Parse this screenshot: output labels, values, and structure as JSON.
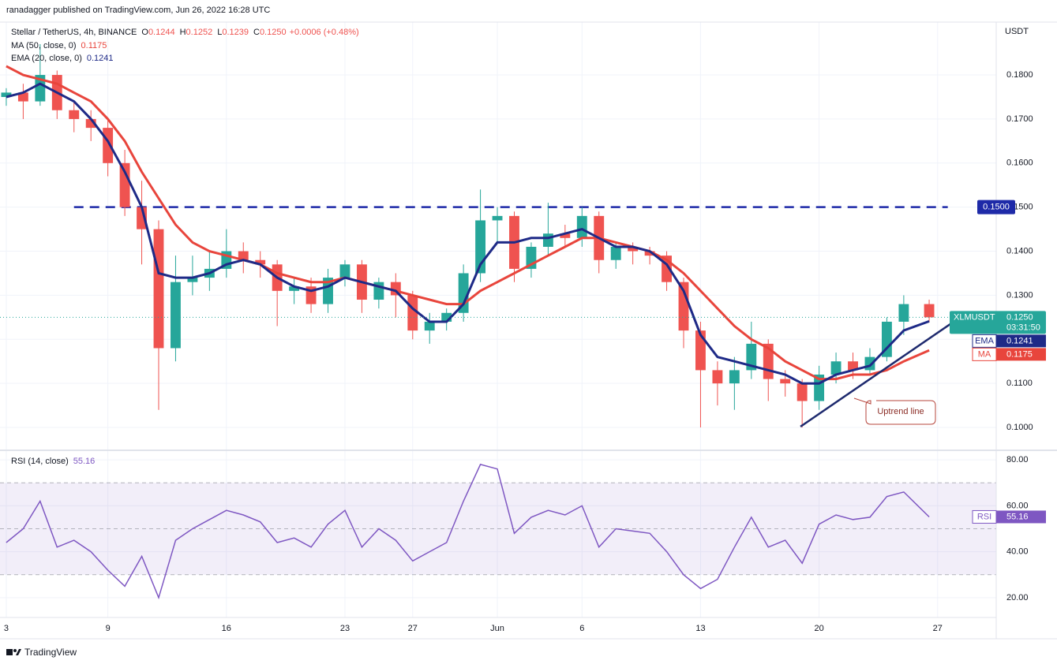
{
  "header": "ranadagger published on TradingView.com, Jun 26, 2022 16:28 UTC",
  "footer": "TradingView",
  "chart_data": {
    "type": "candlestick",
    "currency": "USDT",
    "legend": {
      "symbol": "Stellar / TetherUS, 4h, BINANCE",
      "ohlc": [
        [
          "O",
          "0.1244"
        ],
        [
          "H",
          "0.1252"
        ],
        [
          "L",
          "0.1239"
        ],
        [
          "C",
          "0.1250"
        ]
      ],
      "change": "+0.0006 (+0.48%)"
    },
    "ticker": "XLMUSDT",
    "last_price_label": "0.1250",
    "countdown": "03:31:50",
    "up_color": "#26a69a",
    "down_color": "#ef5350",
    "x": [
      0,
      1,
      2,
      3,
      4,
      5,
      6,
      7,
      8,
      9,
      10,
      11,
      12,
      13,
      14,
      15,
      16,
      17,
      18,
      19,
      20,
      21,
      22,
      23,
      24,
      25,
      26,
      27,
      28,
      29,
      30,
      31,
      32,
      33,
      34,
      35,
      36,
      37,
      38,
      39,
      40,
      41,
      42,
      43,
      44,
      45,
      46,
      47,
      48,
      49,
      50,
      51,
      52,
      53,
      54.5
    ],
    "open": [
      0.175,
      0.176,
      0.174,
      0.18,
      0.172,
      0.17,
      0.168,
      0.16,
      0.15,
      0.145,
      0.118,
      0.133,
      0.134,
      0.136,
      0.14,
      0.138,
      0.137,
      0.131,
      0.132,
      0.128,
      0.134,
      0.137,
      0.129,
      0.133,
      0.13,
      0.122,
      0.124,
      0.126,
      0.135,
      0.147,
      0.148,
      0.136,
      0.141,
      0.144,
      0.143,
      0.148,
      0.138,
      0.141,
      0.14,
      0.139,
      0.133,
      0.122,
      0.113,
      0.11,
      0.113,
      0.119,
      0.111,
      0.11,
      0.106,
      0.112,
      0.115,
      0.113,
      0.116,
      0.124,
      0.128
    ],
    "high": [
      0.177,
      0.178,
      0.187,
      0.181,
      0.174,
      0.172,
      0.17,
      0.163,
      0.156,
      0.147,
      0.139,
      0.139,
      0.14,
      0.145,
      0.142,
      0.14,
      0.138,
      0.134,
      0.134,
      0.136,
      0.138,
      0.138,
      0.134,
      0.135,
      0.131,
      0.126,
      0.127,
      0.137,
      0.154,
      0.15,
      0.149,
      0.142,
      0.151,
      0.146,
      0.15,
      0.149,
      0.142,
      0.142,
      0.141,
      0.14,
      0.134,
      0.124,
      0.115,
      0.116,
      0.124,
      0.12,
      0.113,
      0.111,
      0.114,
      0.117,
      0.117,
      0.118,
      0.125,
      0.13,
      0.129
    ],
    "low": [
      0.173,
      0.17,
      0.173,
      0.17,
      0.167,
      0.165,
      0.157,
      0.148,
      0.137,
      0.104,
      0.115,
      0.13,
      0.131,
      0.134,
      0.135,
      0.134,
      0.123,
      0.128,
      0.126,
      0.126,
      0.132,
      0.126,
      0.127,
      0.125,
      0.12,
      0.119,
      0.122,
      0.124,
      0.133,
      0.142,
      0.133,
      0.134,
      0.139,
      0.141,
      0.141,
      0.135,
      0.136,
      0.137,
      0.137,
      0.131,
      0.118,
      0.1,
      0.105,
      0.104,
      0.111,
      0.106,
      0.107,
      0.1,
      0.104,
      0.11,
      0.111,
      0.112,
      0.115,
      0.121,
      0.124
    ],
    "close": [
      0.176,
      0.174,
      0.18,
      0.172,
      0.17,
      0.168,
      0.16,
      0.15,
      0.145,
      0.118,
      0.133,
      0.134,
      0.136,
      0.14,
      0.138,
      0.137,
      0.131,
      0.132,
      0.128,
      0.134,
      0.137,
      0.129,
      0.133,
      0.13,
      0.122,
      0.124,
      0.126,
      0.135,
      0.147,
      0.148,
      0.136,
      0.141,
      0.144,
      0.143,
      0.148,
      0.138,
      0.141,
      0.14,
      0.139,
      0.133,
      0.122,
      0.113,
      0.11,
      0.113,
      0.119,
      0.111,
      0.11,
      0.106,
      0.112,
      0.115,
      0.113,
      0.116,
      0.124,
      0.128,
      0.125
    ],
    "series": [
      {
        "name": "MA (50, close, 0)",
        "badge": "MA",
        "color": "#e8453c",
        "values": [
          0.182,
          0.18,
          0.179,
          0.178,
          0.176,
          0.174,
          0.17,
          0.165,
          0.158,
          0.152,
          0.146,
          0.142,
          0.14,
          0.139,
          0.138,
          0.137,
          0.135,
          0.134,
          0.133,
          0.133,
          0.134,
          0.133,
          0.132,
          0.131,
          0.13,
          0.129,
          0.128,
          0.128,
          0.131,
          0.133,
          0.135,
          0.137,
          0.139,
          0.141,
          0.143,
          0.143,
          0.142,
          0.141,
          0.14,
          0.138,
          0.135,
          0.131,
          0.127,
          0.123,
          0.12,
          0.118,
          0.115,
          0.113,
          0.111,
          0.111,
          0.112,
          0.112,
          0.113,
          0.115,
          0.1175
        ]
      },
      {
        "name": "EMA (20, close, 0)",
        "badge": "EMA",
        "color": "#1e2a87",
        "values": [
          0.175,
          0.176,
          0.178,
          0.176,
          0.174,
          0.17,
          0.165,
          0.158,
          0.15,
          0.135,
          0.134,
          0.134,
          0.135,
          0.137,
          0.138,
          0.137,
          0.134,
          0.132,
          0.131,
          0.132,
          0.134,
          0.133,
          0.132,
          0.131,
          0.127,
          0.124,
          0.124,
          0.128,
          0.137,
          0.142,
          0.142,
          0.143,
          0.143,
          0.144,
          0.145,
          0.143,
          0.141,
          0.141,
          0.14,
          0.137,
          0.131,
          0.121,
          0.116,
          0.115,
          0.114,
          0.113,
          0.112,
          0.11,
          0.11,
          0.112,
          0.113,
          0.114,
          0.118,
          0.122,
          0.1241
        ]
      }
    ],
    "resistance": {
      "value": 0.15,
      "label": "0.1500",
      "x": [
        4,
        55.6
      ],
      "color": "#1e2aa8"
    },
    "trendline": {
      "x": [
        46.9,
        55.8
      ],
      "values": [
        0.1002,
        0.1236
      ],
      "color": "#1e2a6e"
    },
    "annotation": "Uptrend line",
    "xlim": [
      -0.37,
      58.46
    ],
    "ylim": [
      0.095,
      0.192
    ],
    "xticks": [
      {
        "value": 0,
        "label": "3"
      },
      {
        "value": 6,
        "label": "9"
      },
      {
        "value": 13,
        "label": "16"
      },
      {
        "value": 20,
        "label": "23"
      },
      {
        "value": 24,
        "label": "27"
      },
      {
        "value": 29,
        "label": "Jun"
      },
      {
        "value": 34,
        "label": "6"
      },
      {
        "value": 41,
        "label": "13"
      },
      {
        "value": 48,
        "label": "20"
      },
      {
        "value": 55,
        "label": "27"
      }
    ],
    "yticks": [
      {
        "value": 0.1,
        "label": "0.1000"
      },
      {
        "value": 0.11,
        "label": "0.1100"
      },
      {
        "value": 0.12,
        "label": "0.1200"
      },
      {
        "value": 0.13,
        "label": "0.1300"
      },
      {
        "value": 0.14,
        "label": "0.1400"
      },
      {
        "value": 0.15,
        "label": "0.1500"
      },
      {
        "value": 0.16,
        "label": "0.1600"
      },
      {
        "value": 0.17,
        "label": "0.1700"
      },
      {
        "value": 0.18,
        "label": "0.1800"
      }
    ],
    "grid": true,
    "rsi": {
      "name": "RSI (14, close)",
      "badge": "RSI",
      "color": "#7e57c2",
      "values": [
        44,
        50,
        62,
        42,
        45,
        40,
        32,
        25,
        38,
        20,
        45,
        50,
        54,
        58,
        56,
        53,
        44,
        46,
        42,
        52,
        58,
        42,
        50,
        45,
        36,
        40,
        44,
        62,
        78,
        76,
        48,
        55,
        58,
        56,
        60,
        42,
        50,
        49,
        48,
        40,
        30,
        24,
        28,
        42,
        55,
        42,
        45,
        35,
        52,
        56,
        54,
        55,
        64,
        66,
        55.16
      ],
      "ylim": [
        11.4,
        83.8
      ],
      "yticks": [
        {
          "value": 20,
          "label": "20.00"
        },
        {
          "value": 40,
          "label": "40.00"
        },
        {
          "value": 60,
          "label": "60.00"
        },
        {
          "value": 80,
          "label": "80.00"
        }
      ],
      "levels": [
        30,
        50,
        70
      ]
    }
  }
}
